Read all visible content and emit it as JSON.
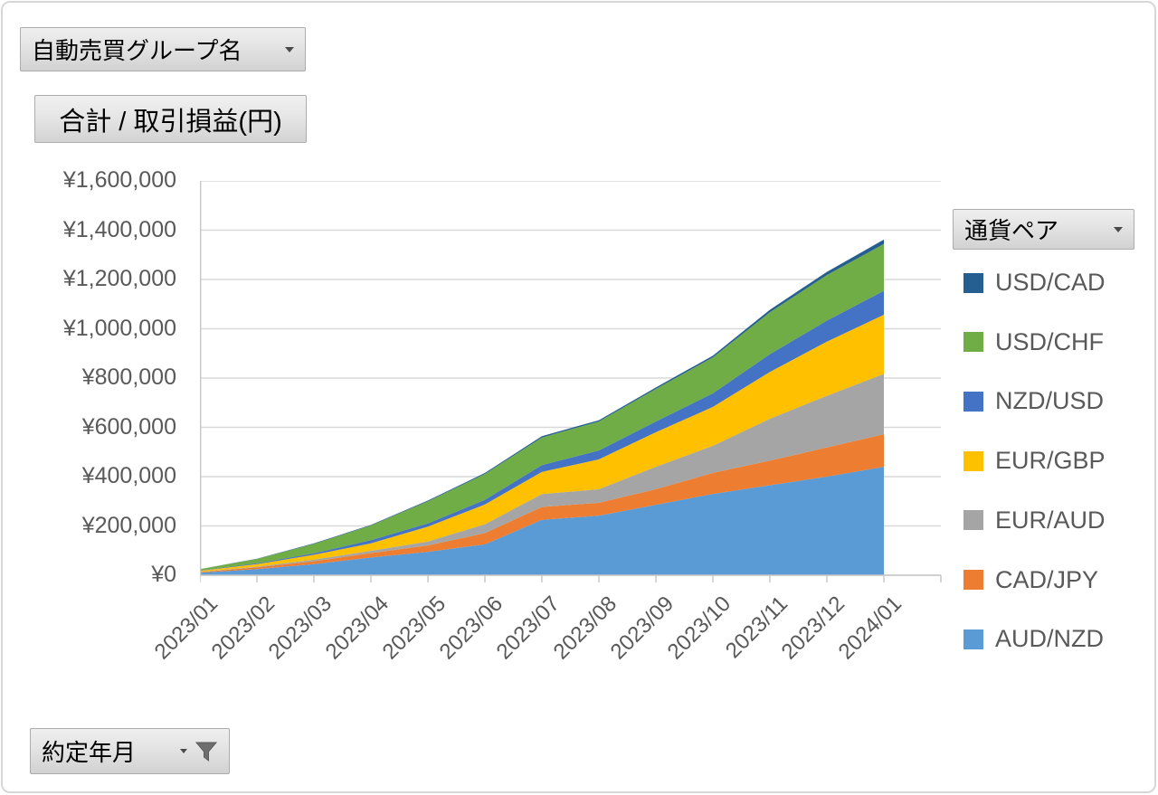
{
  "buttons": {
    "group_field": {
      "label": "自動売買グループ名"
    },
    "legend_field": {
      "label": "通貨ペア"
    },
    "axis_field": {
      "label": "約定年月"
    }
  },
  "chart_title": "合計 / 取引損益(円)",
  "chart_data": {
    "type": "area",
    "stacked": true,
    "title": "合計 / 取引損益(円)",
    "legend_title": "通貨ペア",
    "legend_position": "right",
    "grid": true,
    "xlabel": "約定年月",
    "ylabel": "取引損益(円)",
    "ylim": [
      0,
      1600000
    ],
    "y_tick_labels_top_to_bottom": [
      "¥1,600,000",
      "¥1,400,000",
      "¥1,200,000",
      "¥1,000,000",
      "¥800,000",
      "¥600,000",
      "¥400,000",
      "¥200,000",
      "¥0"
    ],
    "x": [
      "2023/01",
      "2023/02",
      "2023/03",
      "2023/04",
      "2023/05",
      "2023/06",
      "2023/07",
      "2023/08",
      "2023/09",
      "2023/10",
      "2023/11",
      "2023/12",
      "2024/01"
    ],
    "series_bottom_to_top": [
      {
        "name": "AUD/NZD",
        "color": "#5B9BD5",
        "values": [
          10000,
          25000,
          45000,
          72000,
          95000,
          125000,
          225000,
          242000,
          286000,
          330000,
          365000,
          400000,
          440000
        ]
      },
      {
        "name": "CAD/JPY",
        "color": "#ED7D31",
        "values": [
          3000,
          7000,
          12000,
          18000,
          26000,
          46000,
          52000,
          52000,
          63000,
          85000,
          100000,
          118000,
          132000
        ]
      },
      {
        "name": "EUR/AUD",
        "color": "#A5A5A5",
        "values": [
          1000,
          3000,
          6000,
          9000,
          16000,
          36000,
          52000,
          55000,
          91000,
          110000,
          170000,
          210000,
          245000
        ]
      },
      {
        "name": "EUR/GBP",
        "color": "#FFC000",
        "values": [
          4000,
          10000,
          20000,
          30000,
          60000,
          80000,
          90000,
          121000,
          140000,
          158000,
          190000,
          220000,
          240000
        ]
      },
      {
        "name": "NZD/USD",
        "color": "#4472C4",
        "values": [
          1000,
          3000,
          6000,
          13000,
          13000,
          19000,
          28000,
          36000,
          44000,
          55000,
          72000,
          85000,
          97000
        ]
      },
      {
        "name": "USD/CHF",
        "color": "#70AD47",
        "values": [
          6000,
          18000,
          38000,
          60000,
          90000,
          105000,
          112000,
          118000,
          132000,
          146000,
          170000,
          185000,
          190000
        ]
      },
      {
        "name": "USD/CAD",
        "color": "#255E91",
        "values": [
          0,
          1000,
          2000,
          2000,
          3000,
          4000,
          5000,
          5000,
          6000,
          7000,
          10000,
          13000,
          18000
        ]
      }
    ],
    "legend_top_to_bottom": [
      "USD/CAD",
      "USD/CHF",
      "NZD/USD",
      "EUR/GBP",
      "EUR/AUD",
      "CAD/JPY",
      "AUD/NZD"
    ],
    "colors": {
      "axis_text": "#595959",
      "gridline": "#D9D9D9",
      "axis_line": "#C6C6C6"
    }
  }
}
